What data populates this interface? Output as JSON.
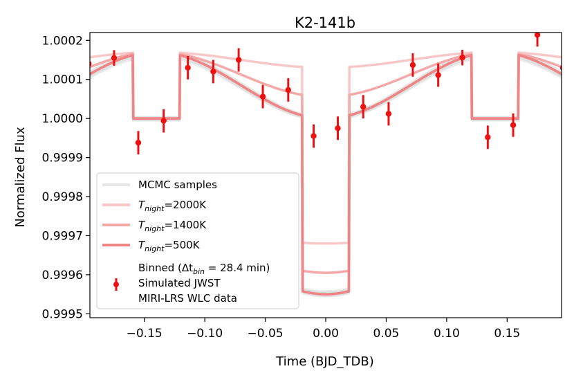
{
  "chart_data": {
    "type": "line",
    "title": "K2-141b",
    "xlabel": "Time (BJD_TDB)",
    "ylabel": "Normalized Flux",
    "xlim": [
      -0.195,
      0.195
    ],
    "ylim": [
      0.99949,
      1.00022
    ],
    "x_ticks": [
      -0.15,
      -0.1,
      -0.05,
      0.0,
      0.05,
      0.1,
      0.15
    ],
    "x_tick_labels": [
      "−0.15",
      "−0.10",
      "−0.05",
      "0.00",
      "0.05",
      "0.10",
      "0.15"
    ],
    "y_ticks": [
      0.9995,
      0.9996,
      0.9997,
      0.9998,
      0.9999,
      1.0,
      1.0001,
      1.0002
    ],
    "y_tick_labels": [
      "0.9995",
      "0.9996",
      "0.9997",
      "0.9998",
      "0.9999",
      "1.0000",
      "1.0001",
      "1.0002"
    ],
    "model": {
      "period": 0.2803,
      "transit_half_width": 0.0195,
      "eclipse_centers": [
        -0.14,
        0.14
      ],
      "eclipse_half_width": 0.0195,
      "transit_depth_below_baseline": 0.00045
    },
    "series": [
      {
        "name": "MCMC samples",
        "color": "#cccccc",
        "night_flux": 0.0,
        "day_flux": 0.00017
      },
      {
        "name": "T_night=2000K",
        "color": "#f8c8c8",
        "night_flux": 0.00013,
        "day_flux": 0.00017
      },
      {
        "name": "T_night=1400K",
        "color": "#f4a8a8",
        "night_flux": 5.5e-05,
        "day_flux": 0.00017
      },
      {
        "name": "T_night=500K",
        "color": "#f08484",
        "night_flux": 0.0,
        "day_flux": 0.00017
      }
    ],
    "binned_data": {
      "name": "Binned",
      "color": "#ee1111",
      "x": [
        -0.196,
        -0.175,
        -0.155,
        -0.134,
        -0.114,
        -0.093,
        -0.072,
        -0.052,
        -0.031,
        -0.01,
        0.01,
        0.031,
        0.052,
        0.072,
        0.093,
        0.113,
        0.134,
        0.155,
        0.175,
        0.196
      ],
      "y": [
        1.00014,
        1.000155,
        0.999938,
        0.999994,
        1.00013,
        1.00012,
        1.00015,
        1.000056,
        1.000073,
        0.999955,
        0.999975,
        1.00003,
        1.000012,
        1.000137,
        1.000111,
        1.000156,
        0.999952,
        0.999983,
        1.000214,
        1.00013
      ],
      "yerr": [
        2e-05,
        2e-05,
        3e-05,
        3e-05,
        3e-05,
        3e-05,
        3e-05,
        3e-05,
        3e-05,
        3e-05,
        3e-05,
        3e-05,
        3e-05,
        3e-05,
        3e-05,
        2e-05,
        3e-05,
        3e-05,
        3e-05,
        2e-05
      ]
    },
    "legend": {
      "position": "lower-left",
      "entries": [
        {
          "label": "MCMC samples",
          "color": "#e6e6e6"
        },
        {
          "label_prefix": "T",
          "label_sub": "night",
          "label_suffix": "=2000K",
          "color": "#f8c8c8"
        },
        {
          "label_prefix": "T",
          "label_sub": "night",
          "label_suffix": "=1400K",
          "color": "#f4a8a8"
        },
        {
          "label_prefix": "T",
          "label_sub": "night",
          "label_suffix": "=500K",
          "color": "#f08484"
        },
        {
          "lines": [
            "Binned (Δt",
            "bin",
            " =  28.4 min)",
            "Simulated JWST",
            "MIRI-LRS WLC data"
          ],
          "color": "#ee1111"
        }
      ]
    }
  }
}
